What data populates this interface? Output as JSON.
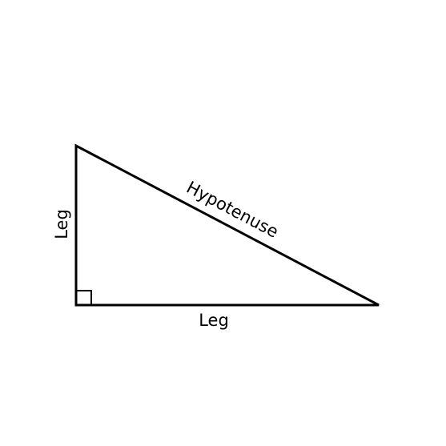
{
  "diagram": {
    "labels": {
      "vertical_leg": "Leg",
      "horizontal_leg": "Leg",
      "hypotenuse": "Hypotenuse"
    },
    "colors": {
      "stroke": "#000000",
      "background": "#ffffff"
    }
  }
}
